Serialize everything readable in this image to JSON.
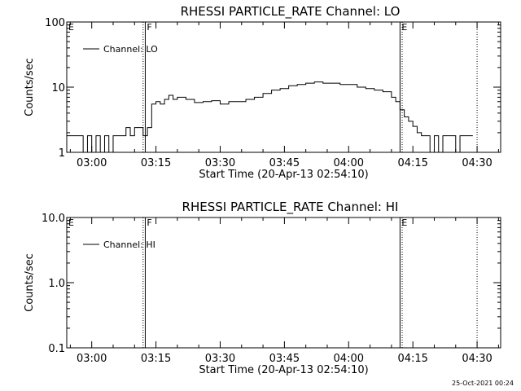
{
  "chart_data": [
    {
      "type": "line",
      "title": "RHESSI PARTICLE_RATE Channel: LO",
      "xlabel": "Start Time (20-Apr-13 02:54:10)",
      "ylabel": "Counts/sec",
      "yscale": "log",
      "ylim": [
        1,
        100
      ],
      "xlim": [
        "02:54:10",
        "04:35:30"
      ],
      "x_ticks": [
        "03:00",
        "03:15",
        "03:30",
        "03:45",
        "04:00",
        "04:15",
        "04:30"
      ],
      "y_ticks": [
        "1",
        "10",
        "100"
      ],
      "legend": {
        "placement": "top-left",
        "entries": [
          "Channel: LO"
        ]
      },
      "series": [
        {
          "name": "Channel: LO",
          "x": [
            "02:54:10",
            "02:57:00",
            "02:58:00",
            "02:59:00",
            "03:00:00",
            "03:01:00",
            "03:02:00",
            "03:03:00",
            "03:04:00",
            "03:05:00",
            "03:06:00",
            "03:07:00",
            "03:08:00",
            "03:09:00",
            "03:10:00",
            "03:11:00",
            "03:12:00",
            "03:13:00",
            "03:14:00",
            "03:15:00",
            "03:16:00",
            "03:17:00",
            "03:18:00",
            "03:19:00",
            "03:20:00",
            "03:22:00",
            "03:24:00",
            "03:26:00",
            "03:28:00",
            "03:30:00",
            "03:32:00",
            "03:34:00",
            "03:36:00",
            "03:38:00",
            "03:40:00",
            "03:42:00",
            "03:44:00",
            "03:46:00",
            "03:48:00",
            "03:50:00",
            "03:52:00",
            "03:54:00",
            "03:56:00",
            "03:58:00",
            "04:00:00",
            "04:02:00",
            "04:04:00",
            "04:06:00",
            "04:08:00",
            "04:10:00",
            "04:11:00",
            "04:12:00",
            "04:13:00",
            "04:14:00",
            "04:15:00",
            "04:16:00",
            "04:17:00",
            "04:18:00",
            "04:19:00",
            "04:20:00",
            "04:21:00",
            "04:22:00",
            "04:23:00",
            "04:24:00",
            "04:25:00",
            "04:26:00",
            "04:27:00",
            "04:28:00",
            "04:29:00"
          ],
          "y": [
            1.8,
            1.8,
            1.0,
            1.8,
            1.0,
            1.8,
            1.0,
            1.8,
            1.0,
            1.8,
            1.8,
            1.8,
            2.4,
            1.8,
            2.4,
            2.4,
            1.8,
            2.4,
            5.5,
            6.0,
            5.5,
            6.5,
            7.5,
            6.5,
            7.0,
            6.5,
            5.8,
            6.0,
            6.2,
            5.5,
            6.0,
            6.0,
            6.5,
            7.0,
            8.0,
            9.0,
            9.5,
            10.5,
            11.0,
            11.5,
            12.0,
            11.5,
            11.5,
            11.0,
            11.0,
            10.0,
            9.5,
            9.0,
            8.5,
            7.0,
            6.0,
            4.5,
            3.5,
            3.0,
            2.5,
            2.0,
            1.8,
            1.8,
            1.0,
            1.8,
            1.0,
            1.8,
            1.8,
            1.8,
            1.0,
            1.8,
            1.8,
            1.8,
            1.8
          ]
        }
      ],
      "markers": [
        {
          "label": "E",
          "time": "02:54:10",
          "style": "dotted"
        },
        {
          "label": "F",
          "time": "03:12:30",
          "style": "solid"
        },
        {
          "label": "",
          "time": "03:12:00",
          "style": "dotted"
        },
        {
          "label": "E",
          "time": "04:12:00",
          "style": "solid"
        },
        {
          "label": "",
          "time": "04:12:30",
          "style": "dotted"
        },
        {
          "label": "",
          "time": "04:30:00",
          "style": "dotted"
        }
      ]
    },
    {
      "type": "line",
      "title": "RHESSI PARTICLE_RATE Channel: HI",
      "xlabel": "Start Time (20-Apr-13 02:54:10)",
      "ylabel": "Counts/sec",
      "yscale": "log",
      "ylim": [
        0.1,
        10
      ],
      "xlim": [
        "02:54:10",
        "04:35:30"
      ],
      "x_ticks": [
        "03:00",
        "03:15",
        "03:30",
        "03:45",
        "04:00",
        "04:15",
        "04:30"
      ],
      "y_ticks": [
        "0.1",
        "1.0",
        "10.0"
      ],
      "legend": {
        "placement": "top-left",
        "entries": [
          "Channel: HI"
        ]
      },
      "series": [
        {
          "name": "Channel: HI",
          "x": [],
          "y": []
        }
      ],
      "markers": [
        {
          "label": "E",
          "time": "02:54:10",
          "style": "dotted"
        },
        {
          "label": "F",
          "time": "03:12:30",
          "style": "solid"
        },
        {
          "label": "",
          "time": "03:12:00",
          "style": "dotted"
        },
        {
          "label": "E",
          "time": "04:12:00",
          "style": "solid"
        },
        {
          "label": "",
          "time": "04:12:30",
          "style": "dotted"
        },
        {
          "label": "",
          "time": "04:30:00",
          "style": "dotted"
        }
      ]
    }
  ],
  "footer": {
    "timestamp": "25-Oct-2021 00:24"
  }
}
